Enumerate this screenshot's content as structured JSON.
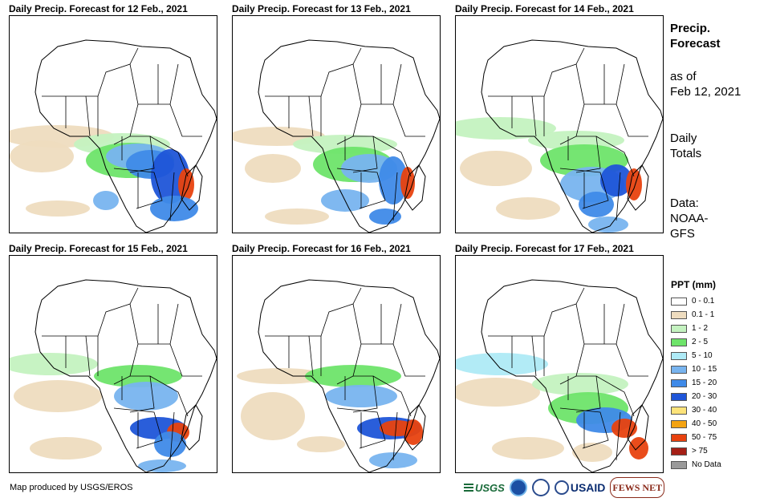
{
  "panels": [
    {
      "title": "Daily Precip. Forecast for 12 Feb., 2021"
    },
    {
      "title": "Daily Precip. Forecast for 13 Feb., 2021"
    },
    {
      "title": "Daily Precip. Forecast for 14 Feb., 2021"
    },
    {
      "title": "Daily Precip. Forecast for 15 Feb., 2021"
    },
    {
      "title": "Daily Precip. Forecast for 16 Feb., 2021"
    },
    {
      "title": "Daily Precip. Forecast for 17 Feb., 2021"
    }
  ],
  "sidebar": {
    "heading_line1": "Precip.",
    "heading_line2": "Forecast",
    "asof_line1": "as of",
    "asof_line2": "Feb 12, 2021",
    "totals_line1": "Daily",
    "totals_line2": "Totals",
    "data_line1": "Data:",
    "data_line2": "NOAA-",
    "data_line3": "GFS"
  },
  "legend": {
    "title": "PPT (mm)",
    "items": [
      {
        "label": "0 - 0.1",
        "color": "#ffffff"
      },
      {
        "label": "0.1 - 1",
        "color": "#eedcbf"
      },
      {
        "label": "1 - 2",
        "color": "#c4f2c0"
      },
      {
        "label": "2 - 5",
        "color": "#6ee46a"
      },
      {
        "label": "5 - 10",
        "color": "#aeeaf6"
      },
      {
        "label": "10 - 15",
        "color": "#78b4ef"
      },
      {
        "label": "15 - 20",
        "color": "#3f8ae8"
      },
      {
        "label": "20 - 30",
        "color": "#1f55d8"
      },
      {
        "label": "30 - 40",
        "color": "#fde37a"
      },
      {
        "label": "40 - 50",
        "color": "#f4a312"
      },
      {
        "label": "50 - 75",
        "color": "#e8420f"
      },
      {
        "label": "> 75",
        "color": "#a51f16"
      },
      {
        "label": "No Data",
        "color": "#9a9a9a"
      }
    ]
  },
  "credit": "Map produced by USGS/EROS",
  "logos": {
    "usgs": "USGS",
    "usaid": "USAID",
    "fews": "FEWS NET"
  }
}
